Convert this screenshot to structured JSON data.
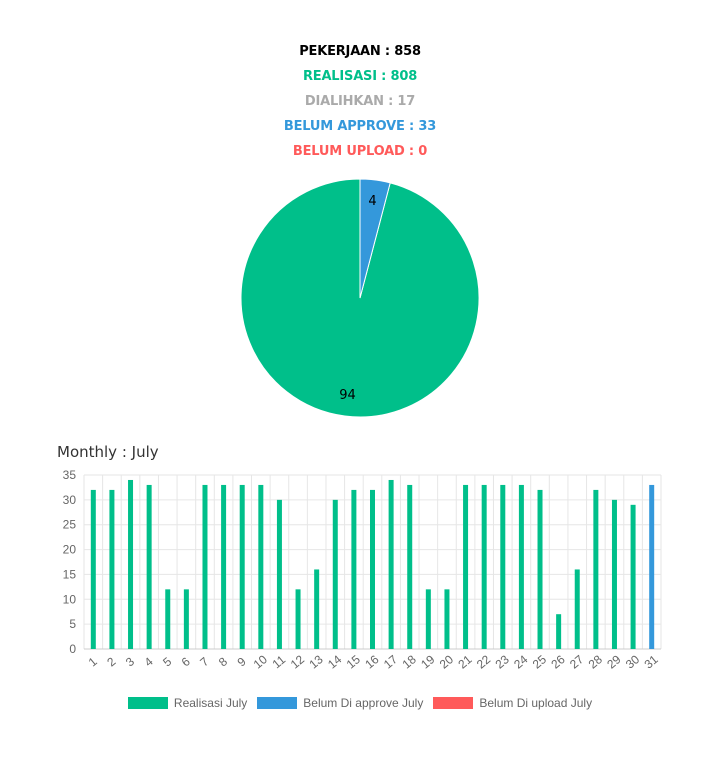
{
  "summary": [
    {
      "label": "PEKERJAAN : 858",
      "color": "#000000"
    },
    {
      "label": "REALISASI : 808",
      "color": "#00bf8a"
    },
    {
      "label": "DIALIHKAN : 17",
      "color": "#aaaaaa"
    },
    {
      "label": "BELUM APPROVE : 33",
      "color": "#3498db"
    },
    {
      "label": "BELUM UPLOAD : 0",
      "color": "#ff5a5a"
    }
  ],
  "colors": {
    "realisasi": "#00bf8a",
    "approve": "#3498db",
    "upload": "#ff5a5a",
    "grid": "#e6e6e6",
    "tick": "#666666"
  },
  "chart_data": [
    {
      "type": "pie",
      "slices": [
        {
          "value": 94,
          "label": "94",
          "color": "#00bf8a"
        },
        {
          "value": 4,
          "label": "4",
          "color": "#3498db"
        }
      ]
    },
    {
      "type": "bar",
      "title": "Monthly : July",
      "categories": [
        "1",
        "2",
        "3",
        "4",
        "5",
        "6",
        "7",
        "8",
        "9",
        "10",
        "11",
        "12",
        "13",
        "14",
        "15",
        "16",
        "17",
        "18",
        "19",
        "20",
        "21",
        "22",
        "23",
        "24",
        "25",
        "26",
        "27",
        "28",
        "29",
        "30",
        "31"
      ],
      "ylim": [
        0,
        35
      ],
      "yticks": [
        0,
        5,
        10,
        15,
        20,
        25,
        30,
        35
      ],
      "grid": true,
      "legend": "bottom",
      "series": [
        {
          "name": "Realisasi July",
          "color": "#00bf8a",
          "values": [
            32,
            32,
            34,
            33,
            12,
            12,
            33,
            33,
            33,
            33,
            30,
            12,
            16,
            30,
            32,
            32,
            34,
            33,
            12,
            12,
            33,
            33,
            33,
            33,
            32,
            7,
            16,
            32,
            30,
            29,
            0
          ]
        },
        {
          "name": "Belum Di approve July",
          "color": "#3498db",
          "values": [
            0,
            0,
            0,
            0,
            0,
            0,
            0,
            0,
            0,
            0,
            0,
            0,
            0,
            0,
            0,
            0,
            0,
            0,
            0,
            0,
            0,
            0,
            0,
            0,
            0,
            0,
            0,
            0,
            0,
            0,
            33
          ]
        },
        {
          "name": "Belum Di upload July",
          "color": "#ff5a5a",
          "values": [
            0,
            0,
            0,
            0,
            0,
            0,
            0,
            0,
            0,
            0,
            0,
            0,
            0,
            0,
            0,
            0,
            0,
            0,
            0,
            0,
            0,
            0,
            0,
            0,
            0,
            0,
            0,
            0,
            0,
            0,
            0
          ]
        }
      ]
    }
  ]
}
